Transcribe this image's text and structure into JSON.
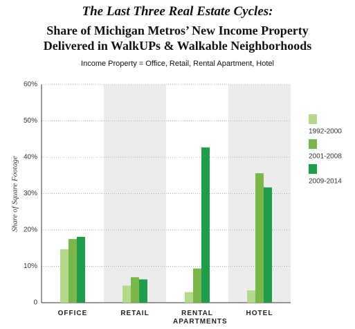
{
  "chart_data": {
    "type": "bar",
    "title": "The Last Three Real Estate Cycles:",
    "subtitle": [
      "Share of Michigan Metros’ New Income Property",
      "Delivered in WalkUPs & Walkable Neighborhoods"
    ],
    "note": "Income Property = Office, Retail, Rental Apartment, Hotel",
    "y_label": "Share of Square Footage",
    "categories": [
      "OFFICE",
      "RETAIL",
      "RENTAL APARTMENTS",
      "HOTEL"
    ],
    "series": [
      {
        "name": "1992-2000",
        "color": "#b5d98a",
        "values": [
          14.7,
          4.7,
          2.9,
          3.4
        ]
      },
      {
        "name": "2001-2008",
        "color": "#7ab648",
        "values": [
          17.5,
          7.0,
          9.4,
          35.6
        ]
      },
      {
        "name": "2009-2014",
        "color": "#1e9e4a",
        "values": [
          18.1,
          6.4,
          42.7,
          31.7
        ]
      }
    ],
    "ylim": [
      0,
      60
    ],
    "yticks": [
      0,
      {
        "value": 10,
        "label": "10%"
      },
      {
        "value": 20,
        "label": "20%"
      },
      {
        "value": 30,
        "label": "30%"
      },
      {
        "value": 40,
        "label": "40%"
      },
      {
        "value": 50,
        "label": "50%"
      },
      {
        "value": 60,
        "label": "60%"
      }
    ],
    "grid": true,
    "legend": "right"
  }
}
